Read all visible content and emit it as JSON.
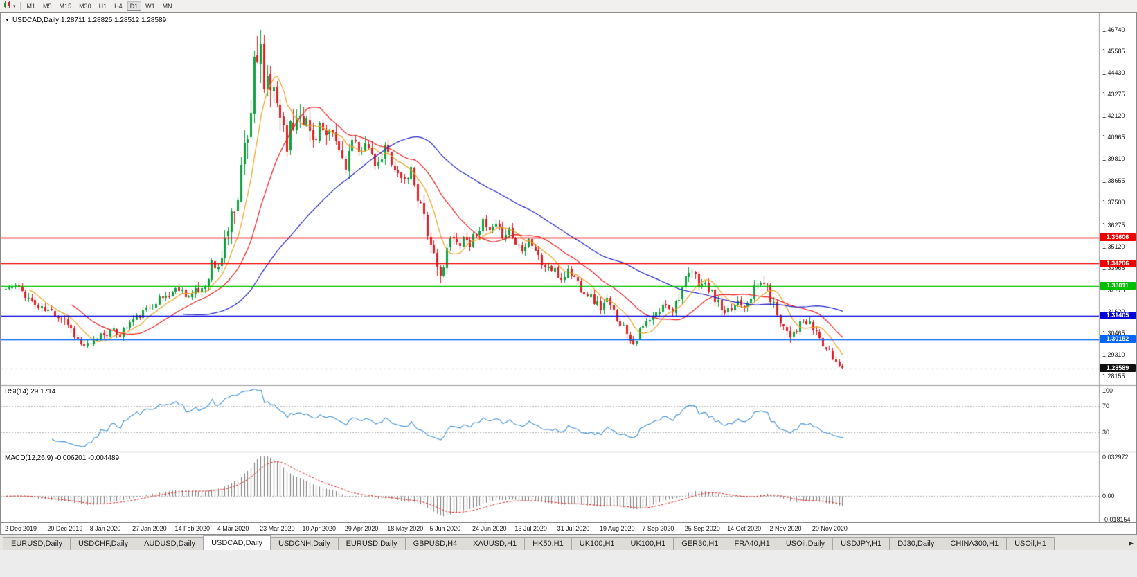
{
  "icons": {
    "symbol_dropdown": "▼",
    "toolbar_dropdown": "▾",
    "tabs_scroll_right": "▶"
  },
  "toolbar": {
    "timeframes": [
      {
        "label": "M1",
        "active": false
      },
      {
        "label": "M5",
        "active": false
      },
      {
        "label": "M15",
        "active": false
      },
      {
        "label": "M30",
        "active": false
      },
      {
        "label": "H1",
        "active": false
      },
      {
        "label": "H4",
        "active": false
      },
      {
        "label": "D1",
        "active": true
      },
      {
        "label": "W1",
        "active": false
      },
      {
        "label": "MN",
        "active": false
      }
    ]
  },
  "window": {
    "title": "USDCAD,Daily 1.28711 1.28825 1.28512 1.28589",
    "symbol": "USDCAD,Daily"
  },
  "tabs": {
    "active_index": 3,
    "items": [
      {
        "label": "EURUSD,Daily"
      },
      {
        "label": "USDCHF,Daily"
      },
      {
        "label": "AUDUSD,Daily"
      },
      {
        "label": "USDCAD,Daily"
      },
      {
        "label": "USDCNH,Daily"
      },
      {
        "label": "EURUSD,Daily"
      },
      {
        "label": "GBPUSD,H4"
      },
      {
        "label": "XAUUSD,H1"
      },
      {
        "label": "HK50,H1"
      },
      {
        "label": "UK100,H1"
      },
      {
        "label": "UK100,H1"
      },
      {
        "label": "GER30,H1"
      },
      {
        "label": "FRA40,H1"
      },
      {
        "label": "USOil,Daily"
      },
      {
        "label": "USDJPY,H1"
      },
      {
        "label": "DJ30,Daily"
      },
      {
        "label": "CHINA300,H1"
      },
      {
        "label": "USOil,H1"
      }
    ]
  },
  "chart_data": {
    "type": "candlestick",
    "symbol": "USDCAD",
    "timeframe": "Daily",
    "ohlc": {
      "open": 1.28711,
      "high": 1.28825,
      "low": 1.28512,
      "close": 1.28589
    },
    "price_ticks": [
      "1.46740",
      "1.45585",
      "1.44430",
      "1.43275",
      "1.42120",
      "1.40965",
      "1.39810",
      "1.38655",
      "1.37500",
      "1.36275",
      "1.35120",
      "1.33965",
      "1.32775",
      "1.31620",
      "1.30465",
      "1.29310",
      "1.28155"
    ],
    "x_labels": [
      "2 Dec 2019",
      "20 Dec 2019",
      "8 Jan 2020",
      "27 Jan 2020",
      "14 Feb 2020",
      "4 Mar 2020",
      "23 Mar 2020",
      "10 Apr 2020",
      "29 Apr 2020",
      "18 May 2020",
      "5 Jun 2020",
      "24 Jun 2020",
      "13 Jul 2020",
      "31 Jul 2020",
      "19 Aug 2020",
      "7 Sep 2020",
      "25 Sep 2020",
      "14 Oct 2020",
      "2 Nov 2020",
      "20 Nov 2020"
    ],
    "label_interval": 13,
    "candle_count": 257,
    "seed": 11,
    "peak_high": 1.4674,
    "close_anchors": [
      [
        0,
        1.3285
      ],
      [
        3,
        1.33
      ],
      [
        6,
        1.3255
      ],
      [
        10,
        1.318
      ],
      [
        14,
        1.316
      ],
      [
        18,
        1.3125
      ],
      [
        20,
        1.307
      ],
      [
        23,
        1.2985
      ],
      [
        26,
        1.2975
      ],
      [
        29,
        1.304
      ],
      [
        32,
        1.3055
      ],
      [
        35,
        1.3045
      ],
      [
        38,
        1.3105
      ],
      [
        42,
        1.3155
      ],
      [
        46,
        1.322
      ],
      [
        50,
        1.3255
      ],
      [
        53,
        1.329
      ],
      [
        56,
        1.3245
      ],
      [
        59,
        1.327
      ],
      [
        61,
        1.331
      ],
      [
        63,
        1.342
      ],
      [
        65,
        1.338
      ],
      [
        67,
        1.3555
      ],
      [
        69,
        1.366
      ],
      [
        71,
        1.381
      ],
      [
        73,
        1.405
      ],
      [
        75,
        1.425
      ],
      [
        76,
        1.455
      ],
      [
        77,
        1.442
      ],
      [
        78,
        1.453
      ],
      [
        79,
        1.433
      ],
      [
        80,
        1.444
      ],
      [
        81,
        1.428
      ],
      [
        82,
        1.435
      ],
      [
        84,
        1.423
      ],
      [
        86,
        1.409
      ],
      [
        88,
        1.417
      ],
      [
        90,
        1.426
      ],
      [
        92,
        1.417
      ],
      [
        94,
        1.408
      ],
      [
        96,
        1.417
      ],
      [
        98,
        1.407
      ],
      [
        100,
        1.411
      ],
      [
        102,
        1.402
      ],
      [
        104,
        1.3955
      ],
      [
        106,
        1.407
      ],
      [
        108,
        1.4005
      ],
      [
        110,
        1.409
      ],
      [
        112,
        1.3975
      ],
      [
        114,
        1.3935
      ],
      [
        116,
        1.404
      ],
      [
        118,
        1.3975
      ],
      [
        120,
        1.3895
      ],
      [
        122,
        1.3865
      ],
      [
        124,
        1.3925
      ],
      [
        126,
        1.3785
      ],
      [
        128,
        1.3695
      ],
      [
        130,
        1.3495
      ],
      [
        132,
        1.3385
      ],
      [
        134,
        1.3405
      ],
      [
        136,
        1.3555
      ],
      [
        138,
        1.3525
      ],
      [
        140,
        1.3565
      ],
      [
        142,
        1.3525
      ],
      [
        144,
        1.3595
      ],
      [
        146,
        1.3635
      ],
      [
        148,
        1.359
      ],
      [
        150,
        1.3615
      ],
      [
        152,
        1.3575
      ],
      [
        154,
        1.3605
      ],
      [
        156,
        1.3525
      ],
      [
        158,
        1.3505
      ],
      [
        160,
        1.3555
      ],
      [
        162,
        1.3495
      ],
      [
        164,
        1.3415
      ],
      [
        166,
        1.34
      ],
      [
        168,
        1.3375
      ],
      [
        170,
        1.3335
      ],
      [
        172,
        1.3385
      ],
      [
        174,
        1.3345
      ],
      [
        176,
        1.329
      ],
      [
        178,
        1.326
      ],
      [
        180,
        1.322
      ],
      [
        182,
        1.3185
      ],
      [
        184,
        1.322
      ],
      [
        186,
        1.3155
      ],
      [
        188,
        1.3105
      ],
      [
        190,
        1.3055
      ],
      [
        192,
        1.2995
      ],
      [
        194,
        1.3055
      ],
      [
        196,
        1.31
      ],
      [
        198,
        1.313
      ],
      [
        200,
        1.3165
      ],
      [
        202,
        1.321
      ],
      [
        204,
        1.3175
      ],
      [
        206,
        1.325
      ],
      [
        208,
        1.3325
      ],
      [
        210,
        1.3375
      ],
      [
        212,
        1.3315
      ],
      [
        214,
        1.3305
      ],
      [
        216,
        1.3255
      ],
      [
        218,
        1.3205
      ],
      [
        220,
        1.3135
      ],
      [
        222,
        1.3175
      ],
      [
        224,
        1.3225
      ],
      [
        226,
        1.3205
      ],
      [
        228,
        1.3255
      ],
      [
        230,
        1.3305
      ],
      [
        232,
        1.3325
      ],
      [
        234,
        1.3235
      ],
      [
        236,
        1.3155
      ],
      [
        238,
        1.3085
      ],
      [
        240,
        1.3045
      ],
      [
        242,
        1.3075
      ],
      [
        244,
        1.3105
      ],
      [
        246,
        1.3085
      ],
      [
        248,
        1.3055
      ],
      [
        250,
        1.2985
      ],
      [
        252,
        1.2935
      ],
      [
        254,
        1.2895
      ],
      [
        256,
        1.28589
      ]
    ],
    "volatility_anchors": [
      [
        0,
        0.0035
      ],
      [
        18,
        0.0045
      ],
      [
        28,
        0.0038
      ],
      [
        55,
        0.004
      ],
      [
        62,
        0.006
      ],
      [
        66,
        0.008
      ],
      [
        70,
        0.011
      ],
      [
        74,
        0.015
      ],
      [
        78,
        0.017
      ],
      [
        82,
        0.014
      ],
      [
        88,
        0.012
      ],
      [
        96,
        0.0095
      ],
      [
        105,
        0.0075
      ],
      [
        115,
        0.006
      ],
      [
        124,
        0.0055
      ],
      [
        130,
        0.008
      ],
      [
        136,
        0.006
      ],
      [
        145,
        0.0045
      ],
      [
        160,
        0.004
      ],
      [
        175,
        0.0045
      ],
      [
        190,
        0.0045
      ],
      [
        200,
        0.004
      ],
      [
        208,
        0.0048
      ],
      [
        220,
        0.0045
      ],
      [
        232,
        0.005
      ],
      [
        240,
        0.0048
      ],
      [
        250,
        0.004
      ],
      [
        256,
        0.0032
      ]
    ],
    "levels": [
      {
        "price": 1.35606,
        "label": "1.35606",
        "color": "#f00000"
      },
      {
        "price": 1.34206,
        "label": "1.34206",
        "color": "#f00000"
      },
      {
        "price": 1.33011,
        "label": "1.33011",
        "color": "#00c000"
      },
      {
        "price": 1.31405,
        "label": "1.31405",
        "color": "#0000d8"
      },
      {
        "price": 1.30152,
        "label": "1.30152",
        "color": "#0066ff"
      }
    ],
    "current_price": {
      "value": 1.28589,
      "label": "1.28589",
      "color": "#101010"
    },
    "moving_averages": [
      {
        "period": 8,
        "color": "#f0a01e"
      },
      {
        "period": 21,
        "color": "#ee1c1c"
      },
      {
        "period": 55,
        "color": "#2020cc"
      }
    ],
    "colors": {
      "up": "#0ca13c",
      "down": "#e01f26"
    },
    "rsi": {
      "label": "RSI(14) 29.1714",
      "period": 14,
      "color": "#4090d8",
      "ticks": [
        "100",
        "70",
        "30"
      ],
      "tick_values": [
        100,
        70,
        30
      ],
      "dashed_levels": [
        70,
        30
      ],
      "range": [
        0,
        100
      ]
    },
    "macd": {
      "label": "MACD(12,26,9) -0.006201 -0.004489",
      "fast": 12,
      "slow": 26,
      "signal": 9,
      "ticks": [
        "0.032972",
        "0.00",
        "-0.018154"
      ],
      "tick_values": [
        0.032972,
        0,
        -0.018154
      ],
      "range": [
        -0.0195,
        0.0345
      ],
      "histogram_color": "#7d7d7d",
      "signal_color": "#dd2222"
    }
  }
}
